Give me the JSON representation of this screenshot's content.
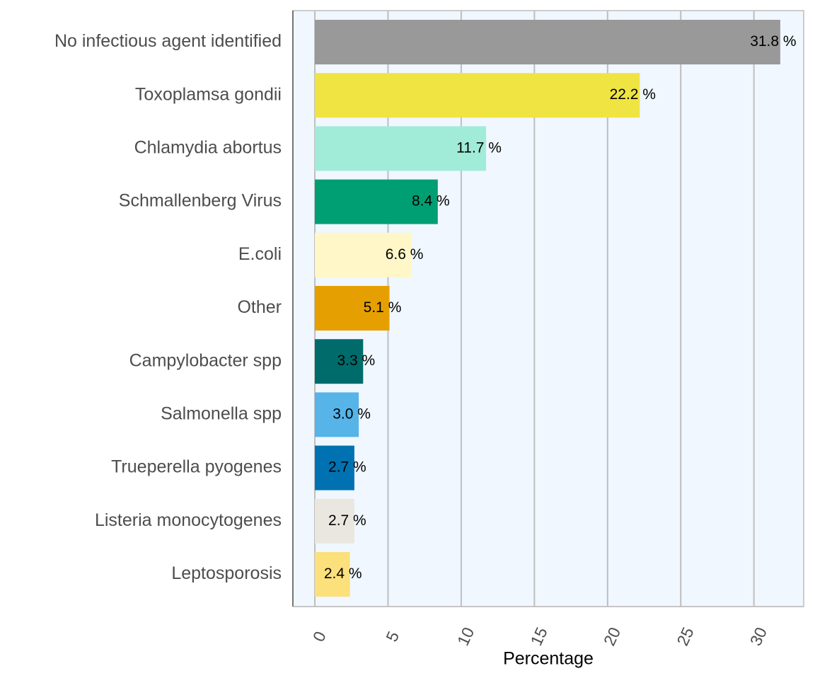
{
  "chart_data": {
    "type": "bar",
    "orientation": "horizontal",
    "categories": [
      "No infectious agent identified",
      "Toxoplamsa gondii",
      "Chlamydia abortus",
      "Schmallenberg Virus",
      "E.coli",
      "Other",
      "Campylobacter spp",
      "Salmonella spp",
      "Trueperella pyogenes",
      "Listeria monocytogenes",
      "Leptosporosis"
    ],
    "values": [
      31.8,
      22.2,
      11.7,
      8.4,
      6.6,
      5.1,
      3.3,
      3.0,
      2.7,
      2.7,
      2.4
    ],
    "data_labels": [
      "31.8 %",
      "22.2 %",
      "11.7 %",
      "8.4 %",
      "6.6 %",
      "5.1 %",
      "3.3 %",
      "3.0 %",
      "2.7 %",
      "2.7 %",
      "2.4 %"
    ],
    "colors": [
      "#999999",
      "#F0E442",
      "#A1ECD8",
      "#009E73",
      "#FFF7C7",
      "#E69F00",
      "#006B6B",
      "#56B4E9",
      "#0072B2",
      "#EAE6E0",
      "#FBE07C"
    ],
    "title": "",
    "xlabel": "Percentage",
    "ylabel": "",
    "xlim": [
      -1.5,
      33.4
    ],
    "xticks": [
      0,
      5,
      10,
      15,
      20,
      25,
      30
    ],
    "xtick_labels": [
      "0",
      "5",
      "10",
      "15",
      "20",
      "25",
      "30"
    ],
    "grid": "vertical major gridlines",
    "panel_background": "#F0F7FF",
    "grid_color": "#BEBEBE",
    "legend": "none"
  }
}
